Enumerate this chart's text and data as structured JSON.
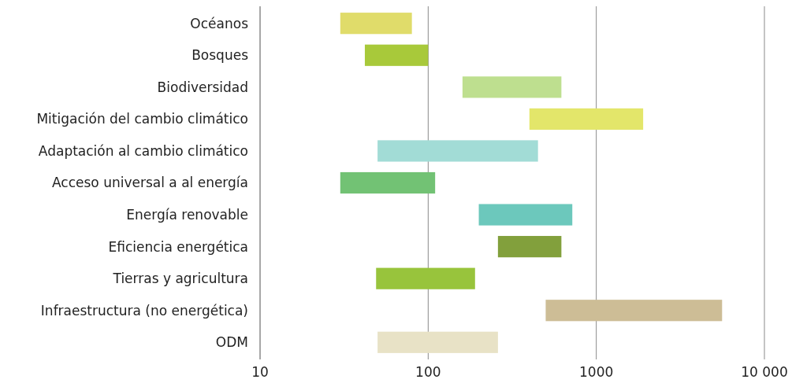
{
  "chart_data": {
    "type": "bar",
    "orientation": "horizontal",
    "log": "x",
    "grid": "x",
    "categories": [
      "Océanos",
      "Bosques",
      "Biodiversidad",
      "Mitigación del cambio climático",
      "Adaptación al cambio climático",
      "Acceso universal a al energía",
      "Energía renovable",
      "Eficiencia energética",
      "Tierras y agricultura",
      "Infraestructura (no energética)",
      "ODM"
    ],
    "base": [
      30,
      42,
      160,
      400,
      50,
      30,
      200,
      260,
      49,
      500,
      50
    ],
    "values": [
      50,
      58,
      460,
      1500,
      400,
      80,
      520,
      360,
      141,
      5100,
      210
    ],
    "colors": [
      "#e0dc6a",
      "#a8c93a",
      "#bedf8f",
      "#e3e66a",
      "#a2dcd6",
      "#72c274",
      "#6cc8bc",
      "#82a03c",
      "#98c43c",
      "#cdbd96",
      "#e8e2c6"
    ],
    "xlim": [
      10,
      10000
    ],
    "xticks": [
      10,
      100,
      1000,
      {
        "value": 10000,
        "label": "10 000"
      }
    ]
  }
}
